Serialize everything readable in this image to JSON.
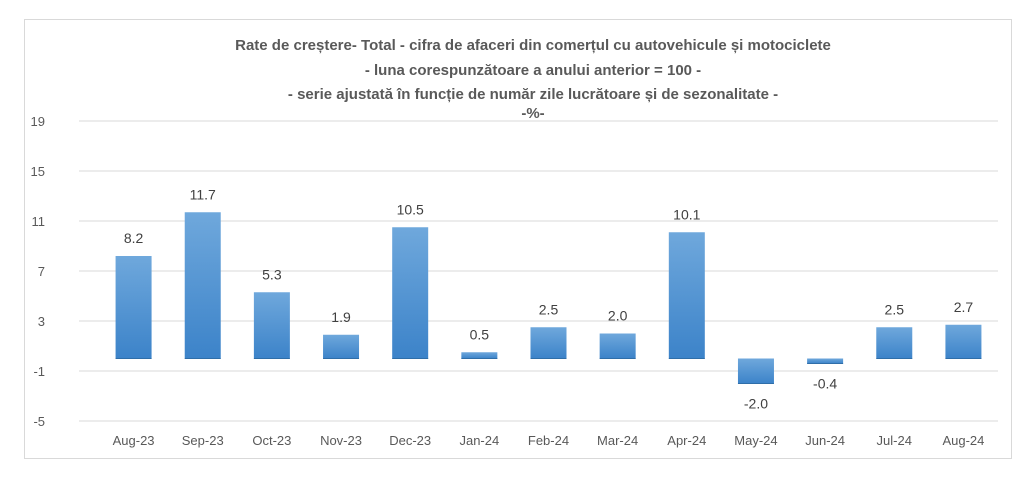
{
  "chart_data": {
    "type": "bar",
    "title_lines": [
      "Rate de creștere- Total - cifra de afaceri din comerțul cu autovehicule și motociclete",
      "- luna corespunzătoare a anului anterior = 100 -",
      "- serie ajustată în funcție de număr zile lucrătoare și de sezonalitate -",
      "-%-"
    ],
    "categories": [
      "Aug-23",
      "Sep-23",
      "Oct-23",
      "Nov-23",
      "Dec-23",
      "Jan-24",
      "Feb-24",
      "Mar-24",
      "Apr-24",
      "May-24",
      "Jun-24",
      "Jul-24",
      "Aug-24"
    ],
    "values": [
      8.2,
      11.7,
      5.3,
      1.9,
      10.5,
      0.5,
      2.5,
      2.0,
      10.1,
      -2.0,
      -0.4,
      2.5,
      2.7
    ],
    "value_labels": [
      "8.2",
      "11.7",
      "5.3",
      "1.9",
      "10.5",
      "0.5",
      "2.5",
      "2.0",
      "10.1",
      "-2.0",
      "-0.4",
      "2.5",
      "2.7"
    ],
    "y_ticks": [
      19,
      15,
      11,
      7,
      3,
      -1,
      -5
    ],
    "y_tick_labels": [
      "19",
      "15",
      "11",
      "7",
      "3",
      "-1",
      "-5"
    ],
    "ylim": [
      -5,
      19
    ],
    "xlabel": "",
    "ylabel": "",
    "grid": true,
    "legend": false,
    "colors": {
      "bar_top": "#6fa8dc",
      "bar_bottom": "#3c83c9",
      "grid": "#d9d9d9",
      "text": "#595959"
    }
  }
}
